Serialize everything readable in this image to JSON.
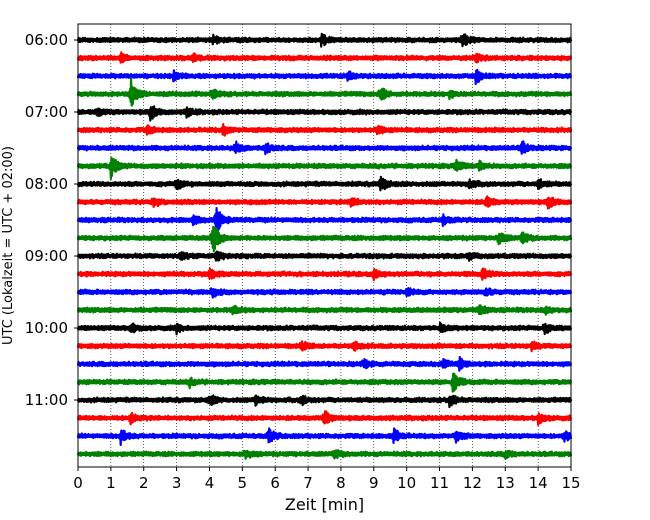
{
  "chart_data": {
    "type": "line",
    "title": "",
    "xlabel": "Zeit  [min]",
    "ylabel": "UTC (Lokalzeit = UTC + 02:00)",
    "xlim": [
      0,
      15
    ],
    "x_ticks": [
      0,
      1,
      2,
      3,
      4,
      5,
      6,
      7,
      8,
      9,
      10,
      11,
      12,
      13,
      14,
      15
    ],
    "y_tick_labels": [
      "06:00",
      "07:00",
      "08:00",
      "09:00",
      "10:00",
      "11:00"
    ],
    "y_tick_rows": [
      0,
      4,
      8,
      12,
      16,
      20
    ],
    "row_interval_min": 15,
    "rows": [
      "06:00",
      "06:15",
      "06:30",
      "06:45",
      "07:00",
      "07:15",
      "07:30",
      "07:45",
      "08:00",
      "08:15",
      "08:30",
      "08:45",
      "09:00",
      "09:15",
      "09:30",
      "09:45",
      "10:00",
      "10:15",
      "10:30",
      "10:45",
      "11:00",
      "11:15",
      "11:30",
      "11:45"
    ],
    "trace_colors": [
      "#000000",
      "#ff0000",
      "#0000ff",
      "#008000"
    ],
    "grid": {
      "x": true,
      "style": "dotted",
      "y": false
    },
    "legend": "none",
    "events": [
      {
        "row": 0,
        "x": 4.1,
        "amp": 0.35
      },
      {
        "row": 0,
        "x": 7.4,
        "amp": 0.45
      },
      {
        "row": 0,
        "x": 11.7,
        "amp": 0.55
      },
      {
        "row": 1,
        "x": 1.3,
        "amp": 0.3
      },
      {
        "row": 1,
        "x": 3.5,
        "amp": 0.3
      },
      {
        "row": 1,
        "x": 12.1,
        "amp": 0.3
      },
      {
        "row": 2,
        "x": 2.9,
        "amp": 0.3
      },
      {
        "row": 2,
        "x": 8.2,
        "amp": 0.35
      },
      {
        "row": 2,
        "x": 12.1,
        "amp": 0.6
      },
      {
        "row": 3,
        "x": 1.6,
        "amp": 1.2
      },
      {
        "row": 3,
        "x": 4.1,
        "amp": 0.4
      },
      {
        "row": 3,
        "x": 9.2,
        "amp": 0.6
      },
      {
        "row": 3,
        "x": 11.3,
        "amp": 0.3
      },
      {
        "row": 4,
        "x": 2.2,
        "amp": 0.65
      },
      {
        "row": 4,
        "x": 3.3,
        "amp": 0.35
      },
      {
        "row": 4,
        "x": 0.6,
        "amp": 0.3
      },
      {
        "row": 5,
        "x": 2.1,
        "amp": 0.3
      },
      {
        "row": 5,
        "x": 4.4,
        "amp": 0.45
      },
      {
        "row": 5,
        "x": 9.1,
        "amp": 0.3
      },
      {
        "row": 6,
        "x": 4.8,
        "amp": 0.4
      },
      {
        "row": 6,
        "x": 5.7,
        "amp": 0.45
      },
      {
        "row": 6,
        "x": 13.5,
        "amp": 0.55
      },
      {
        "row": 7,
        "x": 1.0,
        "amp": 0.9
      },
      {
        "row": 7,
        "x": 11.5,
        "amp": 0.45
      },
      {
        "row": 7,
        "x": 12.2,
        "amp": 0.3
      },
      {
        "row": 8,
        "x": 3.0,
        "amp": 0.35
      },
      {
        "row": 8,
        "x": 9.2,
        "amp": 0.6
      },
      {
        "row": 8,
        "x": 11.9,
        "amp": 0.35
      },
      {
        "row": 8,
        "x": 14.0,
        "amp": 0.4
      },
      {
        "row": 9,
        "x": 2.3,
        "amp": 0.35
      },
      {
        "row": 9,
        "x": 8.3,
        "amp": 0.4
      },
      {
        "row": 9,
        "x": 12.4,
        "amp": 0.45
      },
      {
        "row": 9,
        "x": 14.3,
        "amp": 0.5
      },
      {
        "row": 10,
        "x": 3.5,
        "amp": 0.3
      },
      {
        "row": 10,
        "x": 4.2,
        "amp": 1.1
      },
      {
        "row": 10,
        "x": 11.1,
        "amp": 0.35
      },
      {
        "row": 11,
        "x": 4.1,
        "amp": 1.4
      },
      {
        "row": 11,
        "x": 12.8,
        "amp": 0.55
      },
      {
        "row": 11,
        "x": 13.5,
        "amp": 0.45
      },
      {
        "row": 12,
        "x": 4.2,
        "amp": 0.45
      },
      {
        "row": 12,
        "x": 3.1,
        "amp": 0.3
      },
      {
        "row": 12,
        "x": 11.9,
        "amp": 0.3
      },
      {
        "row": 13,
        "x": 4.0,
        "amp": 0.4
      },
      {
        "row": 13,
        "x": 9.0,
        "amp": 0.35
      },
      {
        "row": 13,
        "x": 12.3,
        "amp": 0.45
      },
      {
        "row": 14,
        "x": 4.1,
        "amp": 0.35
      },
      {
        "row": 14,
        "x": 10.0,
        "amp": 0.3
      },
      {
        "row": 14,
        "x": 12.4,
        "amp": 0.3
      },
      {
        "row": 15,
        "x": 4.7,
        "amp": 0.35
      },
      {
        "row": 15,
        "x": 12.2,
        "amp": 0.35
      },
      {
        "row": 15,
        "x": 14.2,
        "amp": 0.3
      },
      {
        "row": 16,
        "x": 1.6,
        "amp": 0.35
      },
      {
        "row": 16,
        "x": 3.0,
        "amp": 0.3
      },
      {
        "row": 16,
        "x": 11.0,
        "amp": 0.3
      },
      {
        "row": 16,
        "x": 14.2,
        "amp": 0.4
      },
      {
        "row": 17,
        "x": 6.8,
        "amp": 0.3
      },
      {
        "row": 17,
        "x": 8.4,
        "amp": 0.3
      },
      {
        "row": 17,
        "x": 13.8,
        "amp": 0.3
      },
      {
        "row": 18,
        "x": 8.7,
        "amp": 0.3
      },
      {
        "row": 18,
        "x": 11.1,
        "amp": 0.35
      },
      {
        "row": 18,
        "x": 11.6,
        "amp": 0.45
      },
      {
        "row": 19,
        "x": 11.4,
        "amp": 1.0
      },
      {
        "row": 19,
        "x": 3.4,
        "amp": 0.3
      },
      {
        "row": 20,
        "x": 4.0,
        "amp": 0.4
      },
      {
        "row": 20,
        "x": 5.4,
        "amp": 0.4
      },
      {
        "row": 20,
        "x": 11.3,
        "amp": 0.5
      },
      {
        "row": 20,
        "x": 6.8,
        "amp": 0.35
      },
      {
        "row": 21,
        "x": 1.6,
        "amp": 0.4
      },
      {
        "row": 21,
        "x": 7.5,
        "amp": 0.55
      },
      {
        "row": 21,
        "x": 14.0,
        "amp": 0.4
      },
      {
        "row": 22,
        "x": 1.3,
        "amp": 0.55
      },
      {
        "row": 22,
        "x": 5.8,
        "amp": 0.55
      },
      {
        "row": 22,
        "x": 9.6,
        "amp": 0.55
      },
      {
        "row": 22,
        "x": 11.5,
        "amp": 0.45
      },
      {
        "row": 22,
        "x": 14.8,
        "amp": 0.4
      },
      {
        "row": 23,
        "x": 5.1,
        "amp": 0.35
      },
      {
        "row": 23,
        "x": 7.8,
        "amp": 0.3
      },
      {
        "row": 23,
        "x": 13.0,
        "amp": 0.3
      }
    ]
  }
}
